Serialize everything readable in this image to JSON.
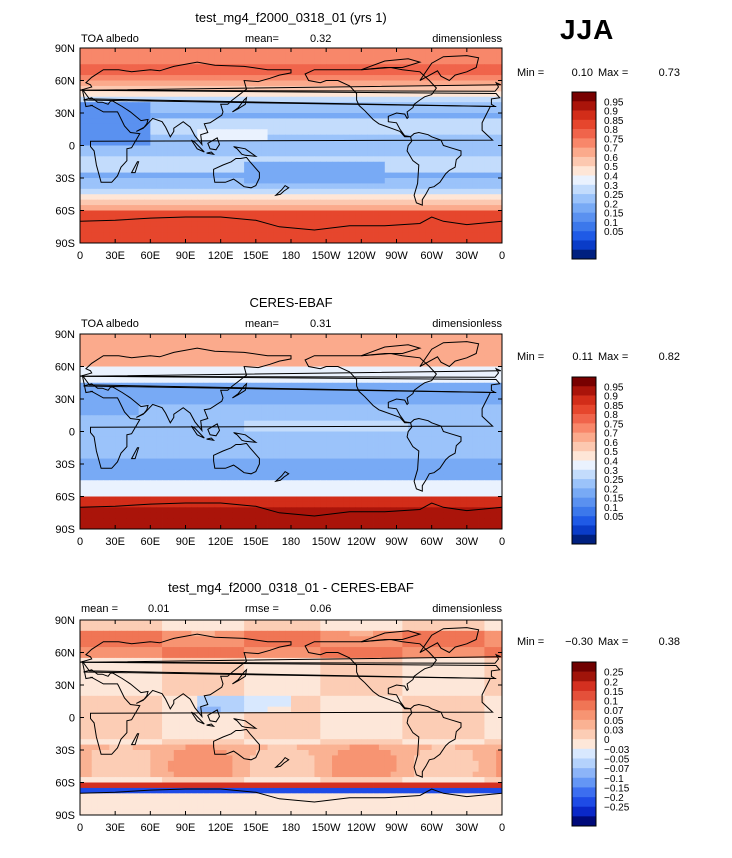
{
  "season": "JJA",
  "axes": {
    "y_ticks": [
      "90N",
      "60N",
      "30N",
      "0",
      "30S",
      "60S",
      "90S"
    ],
    "x_ticks": [
      "0",
      "30E",
      "60E",
      "90E",
      "120E",
      "150E",
      "180",
      "150W",
      "120W",
      "90W",
      "60W",
      "30W",
      "0"
    ]
  },
  "colors": {
    "full_scale": [
      "#002080",
      "#0a3cc8",
      "#1f5ae6",
      "#3c78eb",
      "#5a91f0",
      "#78aaf5",
      "#9bc3fa",
      "#c3dcfc",
      "#eaf2fe",
      "#fee6d7",
      "#fcc8b0",
      "#fbaa8c",
      "#f8876a",
      "#f0644b",
      "#e6462d",
      "#d22d19",
      "#aa140a",
      "#780000"
    ],
    "diff_scale": [
      "#000a7a",
      "#0a28c8",
      "#1e4be6",
      "#3c6ef0",
      "#6496f5",
      "#8cb4f8",
      "#b4d2fc",
      "#d8e8fe",
      "#fde7d9",
      "#fccdb5",
      "#fab293",
      "#f79472",
      "#f07555",
      "#e4503a",
      "#d43020",
      "#a0140a",
      "#700000"
    ]
  },
  "chart_data": [
    {
      "type": "heatmap",
      "title": "test_mg4_f2000_0318_01 (yrs 1)",
      "left_label": "TOA albedo",
      "stat_label": "mean=",
      "stat_value": "0.32",
      "units": "dimensionless",
      "min_label": "Min =",
      "min_value": "0.10",
      "max_label": "Max =",
      "max_value": "0.73",
      "levels": [
        "0.95",
        "0.9",
        "0.85",
        "0.8",
        "0.75",
        "0.7",
        "0.6",
        "0.5",
        "0.4",
        "0.3",
        "0.25",
        "0.2",
        "0.15",
        "0.1",
        "0.05"
      ],
      "mean": 0.32,
      "min": 0.1,
      "max": 0.73
    },
    {
      "type": "heatmap",
      "title": "CERES-EBAF",
      "left_label": "TOA albedo",
      "stat_label": "mean=",
      "stat_value": "0.31",
      "units": "dimensionless",
      "min_label": "Min =",
      "min_value": "0.11",
      "max_label": "Max =",
      "max_value": "0.82",
      "levels": [
        "0.95",
        "0.9",
        "0.85",
        "0.8",
        "0.75",
        "0.7",
        "0.6",
        "0.5",
        "0.4",
        "0.3",
        "0.25",
        "0.2",
        "0.15",
        "0.1",
        "0.05"
      ],
      "mean": 0.31,
      "min": 0.11,
      "max": 0.82
    },
    {
      "type": "heatmap",
      "title": "test_mg4_f2000_0318_01 - CERES-EBAF",
      "left_label": "mean =",
      "left_value": "0.01",
      "stat_label": "rmse =",
      "stat_value": "0.06",
      "units": "dimensionless",
      "min_label": "Min =",
      "min_value": "−0.30",
      "max_label": "Max =",
      "max_value": "0.38",
      "levels": [
        "0.25",
        "0.2",
        "0.15",
        "0.1",
        "0.07",
        "0.05",
        "0.03",
        "0",
        "−0.03",
        "−0.05",
        "−0.07",
        "−0.1",
        "−0.15",
        "−0.2",
        "−0.25"
      ],
      "mean": 0.01,
      "rmse": 0.06,
      "min": -0.3,
      "max": 0.38
    }
  ]
}
